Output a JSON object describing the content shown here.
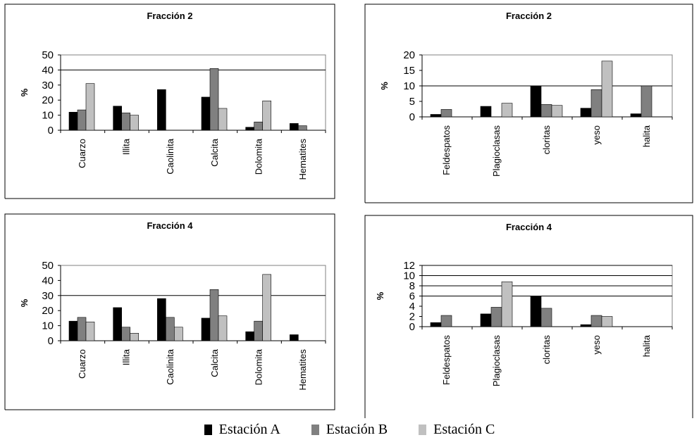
{
  "legend": {
    "items": [
      {
        "label": "Estación A",
        "color": "#000000"
      },
      {
        "label": "Estación B",
        "color": "#808080"
      },
      {
        "label": "Estación C",
        "color": "#c0c0c0"
      }
    ]
  },
  "chart_data": [
    {
      "type": "bar",
      "title": "Fracción 2",
      "ylabel": "%",
      "ylim": [
        0,
        50
      ],
      "yticks": [
        0,
        10,
        20,
        30,
        40,
        50
      ],
      "gridlines": [
        40
      ],
      "categories": [
        "Cuarzo",
        "Illita",
        "Caolinita",
        "Calcita",
        "Dolomita",
        "Hematites"
      ],
      "series": [
        {
          "name": "Estación A",
          "color": "#000000",
          "values": [
            12,
            16,
            27,
            22,
            2,
            4.5
          ]
        },
        {
          "name": "Estación B",
          "color": "#808080",
          "values": [
            13.5,
            11.5,
            null,
            41,
            5.5,
            3
          ]
        },
        {
          "name": "Estación C",
          "color": "#c0c0c0",
          "values": [
            31,
            10,
            null,
            14.5,
            19.5,
            null
          ]
        }
      ]
    },
    {
      "type": "bar",
      "title": "Fracción 2",
      "ylabel": "%",
      "ylim": [
        0,
        20
      ],
      "yticks": [
        0,
        5,
        10,
        15,
        20
      ],
      "gridlines": [
        10
      ],
      "categories": [
        "Feldespatos",
        "Plagioclasas",
        "cloritas",
        "yeso",
        "halita"
      ],
      "series": [
        {
          "name": "Estación A",
          "color": "#000000",
          "values": [
            0.8,
            3.4,
            10,
            2.8,
            1
          ]
        },
        {
          "name": "Estación B",
          "color": "#808080",
          "values": [
            2.4,
            null,
            4,
            8.8,
            10
          ]
        },
        {
          "name": "Estación C",
          "color": "#c0c0c0",
          "values": [
            null,
            4.4,
            3.7,
            18,
            null
          ]
        }
      ]
    },
    {
      "type": "bar",
      "title": "Fracción 4",
      "ylabel": "%",
      "ylim": [
        0,
        50
      ],
      "yticks": [
        0,
        10,
        20,
        30,
        40,
        50
      ],
      "gridlines": [
        30
      ],
      "categories": [
        "Cuarzo",
        "Illita",
        "Caolinita",
        "Calcita",
        "Dolomita",
        "Hematites"
      ],
      "series": [
        {
          "name": "Estación A",
          "color": "#000000",
          "values": [
            13,
            22,
            28,
            15,
            6,
            4
          ]
        },
        {
          "name": "Estación B",
          "color": "#808080",
          "values": [
            15.5,
            9,
            15.5,
            34,
            13,
            null
          ]
        },
        {
          "name": "Estación C",
          "color": "#c0c0c0",
          "values": [
            12.5,
            5,
            9,
            16.5,
            44,
            null
          ]
        }
      ]
    },
    {
      "type": "bar",
      "title": "Fracción 4",
      "ylabel": "%",
      "ylim": [
        0,
        12
      ],
      "yticks": [
        0,
        2,
        4,
        6,
        8,
        10,
        12
      ],
      "gridlines": [
        6,
        8,
        10,
        12
      ],
      "categories": [
        "Feldespatos",
        "Plagioclasas",
        "cloritas",
        "yeso",
        "halita"
      ],
      "series": [
        {
          "name": "Estación A",
          "color": "#000000",
          "values": [
            0.8,
            2.5,
            6,
            0.4,
            null
          ]
        },
        {
          "name": "Estación B",
          "color": "#808080",
          "values": [
            2.2,
            3.8,
            3.6,
            2.2,
            null
          ]
        },
        {
          "name": "Estación C",
          "color": "#c0c0c0",
          "values": [
            null,
            8.8,
            null,
            2,
            null
          ]
        }
      ]
    }
  ]
}
